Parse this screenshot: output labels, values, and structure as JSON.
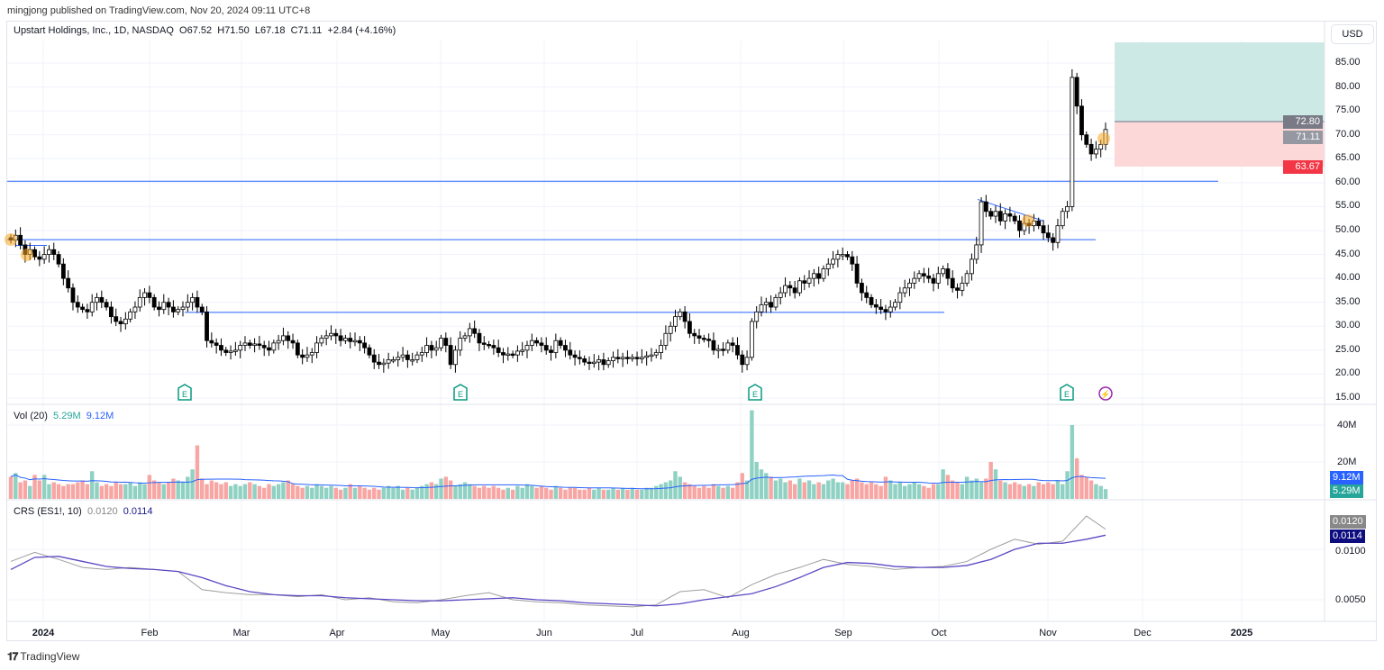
{
  "publisher": "mingjong published on TradingView.com, Nov 20, 2024 09:11 UTC+8",
  "legend": {
    "symbol": "Upstart Holdings, Inc., 1D, NASDAQ",
    "open": "O67.52",
    "high": "H71.50",
    "low": "L67.18",
    "close": "C71.11",
    "change": "+2.84 (+4.16%)"
  },
  "currency_button": "USD",
  "colors": {
    "up_volume": "#8fd1c3",
    "down_volume": "#f7a6a4",
    "hline": "#2962ff",
    "vol_ma": "#2962ff",
    "crs": "#9e9e9e",
    "crs_ma": "#5b48c4",
    "target_zone": "#cce9e5",
    "stop_zone": "#fdd8d8",
    "highlight": "#f9a825"
  },
  "price_axis": {
    "ticks": [
      "85.00",
      "80.00",
      "75.00",
      "70.00",
      "65.00",
      "60.00",
      "55.00",
      "50.00",
      "45.00",
      "40.00",
      "35.00",
      "30.00",
      "25.00",
      "20.00",
      "15.00"
    ],
    "entry_label": "72.80",
    "last_label": "71.11",
    "stop_label": "63.67"
  },
  "volume_pane": {
    "title": "Vol (20)",
    "value": "5.29M",
    "ma_value": "9.12M",
    "ticks": [
      "40M",
      "20M"
    ]
  },
  "crs_pane": {
    "title": "CRS (ES1!, 10)",
    "value": "0.0120",
    "ma_value": "0.0114",
    "ticks": [
      "0.0100",
      "0.0050"
    ]
  },
  "x_axis": [
    "2024",
    "Feb",
    "Mar",
    "Apr",
    "May",
    "Jun",
    "Jul",
    "Aug",
    "Sep",
    "Oct",
    "Nov",
    "Dec",
    "2025"
  ],
  "events": [
    {
      "type": "earnings",
      "label": "E"
    },
    {
      "type": "earnings",
      "label": "E"
    },
    {
      "type": "earnings",
      "label": "E"
    },
    {
      "type": "earnings",
      "label": "E"
    },
    {
      "type": "dividend-split",
      "label": "⚡"
    }
  ],
  "footer_brand": "TradingView",
  "chart_data": {
    "type": "candlestick",
    "title": "Upstart Holdings, Inc., 1D, NASDAQ",
    "ylim": [
      15,
      87
    ],
    "close": [
      48,
      49,
      47,
      45,
      46,
      44.5,
      44,
      45,
      46,
      45,
      43,
      40,
      38,
      35,
      34,
      33.5,
      33,
      35,
      36,
      35,
      34,
      32,
      31,
      30.5,
      31.5,
      33,
      34,
      36,
      37,
      36,
      34,
      33.5,
      35,
      34,
      33,
      33.5,
      34,
      35,
      36,
      34,
      33,
      27,
      26.5,
      26,
      25,
      24.5,
      24.8,
      25,
      26,
      26.5,
      26,
      26.3,
      26,
      25.5,
      25,
      26.5,
      27,
      28,
      27,
      26.5,
      24,
      23.5,
      24,
      24.5,
      26.5,
      27.5,
      28,
      28.5,
      28,
      27,
      27.5,
      26.8,
      27,
      26.5,
      25.5,
      24,
      22.5,
      22,
      22.3,
      23,
      23,
      23.5,
      24,
      23,
      23,
      24,
      24.5,
      26,
      25,
      25.5,
      27.5,
      26,
      22,
      25,
      27.5,
      28,
      29.5,
      28.5,
      26.5,
      26.2,
      26,
      25.5,
      24.5,
      24,
      24.2,
      24,
      24.8,
      25,
      26,
      27,
      26.5,
      26,
      25,
      24.5,
      27,
      26,
      25,
      24,
      23.5,
      23.2,
      22.5,
      22.3,
      22.5,
      23,
      22,
      22.8,
      23.5,
      23.2,
      23.5,
      23.3,
      23.5,
      23.2,
      23.5,
      23.8,
      24,
      24.5,
      26,
      28.5,
      30,
      32,
      33,
      31,
      28.5,
      28,
      27.5,
      27.3,
      27,
      25,
      25.2,
      25,
      26.5,
      26,
      24,
      22,
      23.5,
      31,
      33,
      34.5,
      35,
      34,
      36,
      37,
      38.5,
      38,
      37,
      39.5,
      39,
      40,
      41,
      40,
      42,
      43,
      44,
      45,
      45,
      44.5,
      43,
      39,
      37,
      36,
      34.5,
      34,
      33.5,
      33,
      34,
      35,
      37,
      38,
      39,
      40,
      41,
      40.5,
      40,
      39,
      41,
      42,
      40,
      38,
      37.5,
      39,
      41,
      44,
      47,
      56,
      54,
      53,
      54,
      52,
      53.5,
      53,
      52,
      50,
      51.5,
      51,
      52,
      51,
      49.5,
      48.5,
      47.5,
      51,
      54,
      55,
      82,
      76,
      70,
      68,
      66,
      67,
      68,
      71.11
    ],
    "volume_millions": [
      12,
      14,
      9,
      10,
      7,
      13,
      10,
      13,
      8,
      9,
      8,
      7,
      8,
      8,
      9,
      10,
      8,
      15,
      9,
      7,
      8,
      7,
      9,
      8,
      8,
      9,
      7,
      9,
      8,
      13,
      10,
      9,
      8,
      9,
      11,
      10,
      9,
      12,
      16,
      29,
      11,
      8,
      10,
      9,
      8,
      9,
      7,
      8,
      7,
      8,
      9,
      8,
      7,
      6,
      8,
      7,
      8,
      9,
      10,
      8,
      7,
      6,
      7,
      6,
      8,
      7,
      6,
      7,
      6,
      5,
      6,
      8,
      6,
      7,
      6,
      5,
      6,
      5,
      6,
      7,
      6,
      7,
      5,
      6,
      5,
      6,
      7,
      8,
      9,
      8,
      11,
      12,
      10,
      7,
      8,
      9,
      8,
      7,
      6,
      7,
      6,
      7,
      6,
      5,
      6,
      5,
      7,
      6,
      8,
      7,
      6,
      7,
      6,
      5,
      7,
      6,
      5,
      6,
      6,
      5,
      5,
      6,
      5,
      6,
      5,
      5,
      6,
      5,
      6,
      5,
      6,
      5,
      5,
      6,
      6,
      7,
      8,
      9,
      10,
      15,
      12,
      9,
      8,
      7,
      6,
      7,
      6,
      8,
      7,
      6,
      7,
      6,
      9,
      14,
      10,
      48,
      20,
      16,
      14,
      12,
      10,
      11,
      9,
      10,
      8,
      11,
      9,
      10,
      8,
      9,
      8,
      10,
      11,
      9,
      9,
      8,
      10,
      11,
      9,
      8,
      9,
      8,
      7,
      12,
      10,
      8,
      9,
      7,
      8,
      9,
      8,
      7,
      6,
      8,
      8,
      16,
      13,
      10,
      9,
      8,
      12,
      10,
      11,
      9,
      11,
      20,
      16,
      10,
      9,
      8,
      9,
      8,
      7,
      8,
      7,
      9,
      8,
      9,
      8,
      10,
      8,
      15,
      40,
      22,
      13,
      12,
      10,
      8,
      7,
      5.29
    ],
    "crs_weekly": [
      0.0088,
      0.0097,
      0.009,
      0.0082,
      0.008,
      0.0082,
      0.008,
      0.0078,
      0.006,
      0.0057,
      0.0055,
      0.0055,
      0.0053,
      0.0055,
      0.005,
      0.0052,
      0.0048,
      0.0047,
      0.005,
      0.0054,
      0.0057,
      0.005,
      0.0048,
      0.0047,
      0.0045,
      0.0044,
      0.0043,
      0.0045,
      0.0058,
      0.006,
      0.0052,
      0.0065,
      0.0075,
      0.0082,
      0.009,
      0.0085,
      0.0083,
      0.008,
      0.0082,
      0.0083,
      0.0088,
      0.01,
      0.011,
      0.0105,
      0.0108,
      0.0133,
      0.012
    ],
    "crs_ma_weekly": [
      0.008,
      0.0092,
      0.0093,
      0.0088,
      0.0083,
      0.0081,
      0.008,
      0.0078,
      0.0072,
      0.0064,
      0.0058,
      0.0055,
      0.0054,
      0.0054,
      0.0052,
      0.0051,
      0.005,
      0.0049,
      0.0049,
      0.005,
      0.0051,
      0.0052,
      0.005,
      0.0049,
      0.0047,
      0.0046,
      0.0045,
      0.0044,
      0.0046,
      0.005,
      0.0053,
      0.0056,
      0.0063,
      0.0072,
      0.0082,
      0.0087,
      0.0086,
      0.0083,
      0.0082,
      0.0082,
      0.0084,
      0.009,
      0.01,
      0.0106,
      0.0106,
      0.011,
      0.0114
    ],
    "horizontal_levels": [
      60.3,
      48.1,
      32.9,
      46.9
    ],
    "trendline": [
      [
        56.5,
        "Oct 14"
      ],
      [
        52.0,
        "Oct 28"
      ]
    ],
    "position": {
      "entry": 72.8,
      "stop": 63.67,
      "target": 89.3
    }
  }
}
